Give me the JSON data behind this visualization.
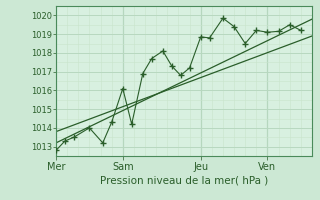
{
  "title": "",
  "xlabel": "Pression niveau de la mer( hPa )",
  "ylabel": "",
  "bg_color": "#cce8d4",
  "plot_bg_color": "#d8f0e0",
  "grid_major_color": "#b8d8c0",
  "grid_minor_color": "#c8e4cc",
  "line_color": "#2a5e2a",
  "ylim": [
    1012.5,
    1020.5
  ],
  "yticks": [
    1013,
    1014,
    1015,
    1016,
    1017,
    1018,
    1019,
    1020
  ],
  "day_labels": [
    "Mer",
    "Sam",
    "Jeu",
    "Ven"
  ],
  "day_positions": [
    0.0,
    3.0,
    6.5,
    9.5
  ],
  "xlim": [
    0,
    11.5
  ],
  "series1_x": [
    0.0,
    0.4,
    0.8,
    1.5,
    2.1,
    2.5,
    3.0,
    3.4,
    3.9,
    4.3,
    4.8,
    5.2,
    5.6,
    6.0,
    6.5,
    6.9,
    7.5,
    8.0,
    8.5,
    9.0,
    9.5,
    10.0,
    10.5,
    11.0
  ],
  "series1_y": [
    1012.8,
    1013.3,
    1013.5,
    1014.0,
    1013.2,
    1014.3,
    1016.1,
    1014.2,
    1016.9,
    1017.7,
    1018.1,
    1017.3,
    1016.8,
    1017.2,
    1018.85,
    1018.8,
    1019.85,
    1019.4,
    1018.5,
    1019.2,
    1019.1,
    1019.15,
    1019.5,
    1019.2
  ],
  "trend1_x": [
    0.0,
    11.5
  ],
  "trend1_y": [
    1013.2,
    1019.8
  ],
  "trend2_x": [
    0.0,
    11.5
  ],
  "trend2_y": [
    1013.8,
    1018.9
  ],
  "xlabel_fontsize": 7.5,
  "ytick_fontsize": 6,
  "xtick_fontsize": 7
}
